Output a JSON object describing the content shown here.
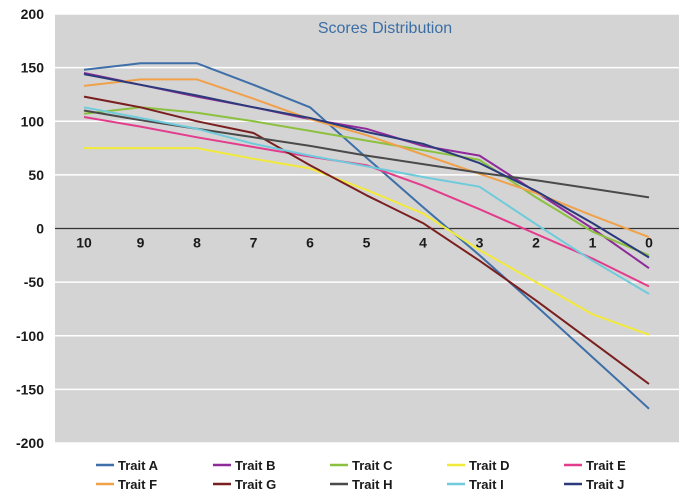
{
  "chart_data": {
    "type": "line",
    "title": "Scores Distribution",
    "xlabel": "",
    "ylabel": "",
    "categories": [
      "10",
      "9",
      "8",
      "7",
      "6",
      "5",
      "4",
      "3",
      "2",
      "1",
      "0"
    ],
    "ylim": [
      -200,
      200
    ],
    "yticks": [
      200,
      150,
      100,
      50,
      0,
      -50,
      -100,
      -150,
      -200
    ],
    "grid": true,
    "legend_position": "bottom",
    "plot_background": "#d4d4d4",
    "series": [
      {
        "name": "Trait A",
        "color": "#3e6fa8",
        "values": [
          148,
          154,
          154,
          134,
          113,
          66,
          20,
          -25,
          -72,
          -120,
          -168
        ]
      },
      {
        "name": "Trait B",
        "color": "#8e2a9a",
        "values": [
          145,
          134,
          123,
          113,
          102,
          93,
          77,
          68,
          34,
          0,
          -37
        ]
      },
      {
        "name": "Trait C",
        "color": "#8cc13f",
        "values": [
          107,
          113,
          108,
          100,
          91,
          82,
          73,
          64,
          29,
          -3,
          -25
        ]
      },
      {
        "name": "Trait D",
        "color": "#f2ea3a",
        "values": [
          75,
          75,
          75,
          65,
          56,
          36,
          14,
          -20,
          -50,
          -80,
          -99
        ]
      },
      {
        "name": "Trait E",
        "color": "#e43c8c",
        "values": [
          104,
          95,
          85,
          76,
          67,
          59,
          40,
          18,
          -5,
          -28,
          -54
        ]
      },
      {
        "name": "Trait F",
        "color": "#f0a14a",
        "values": [
          133,
          139,
          139,
          121,
          102,
          87,
          69,
          51,
          33,
          12,
          -8
        ]
      },
      {
        "name": "Trait G",
        "color": "#7a1f1f",
        "values": [
          123,
          113,
          100,
          89,
          59,
          31,
          5,
          -30,
          -67,
          -106,
          -145
        ]
      },
      {
        "name": "Trait H",
        "color": "#4a4a4a",
        "values": [
          110,
          101,
          93,
          85,
          77,
          68,
          60,
          52,
          45,
          37,
          29
        ]
      },
      {
        "name": "Trait I",
        "color": "#6fcbdb",
        "values": [
          113,
          103,
          93,
          79,
          68,
          58,
          48,
          39,
          4,
          -30,
          -61
        ]
      },
      {
        "name": "Trait J",
        "color": "#2b3a7a",
        "values": [
          144,
          134,
          124,
          113,
          103,
          90,
          79,
          61,
          35,
          5,
          -27
        ]
      }
    ]
  }
}
